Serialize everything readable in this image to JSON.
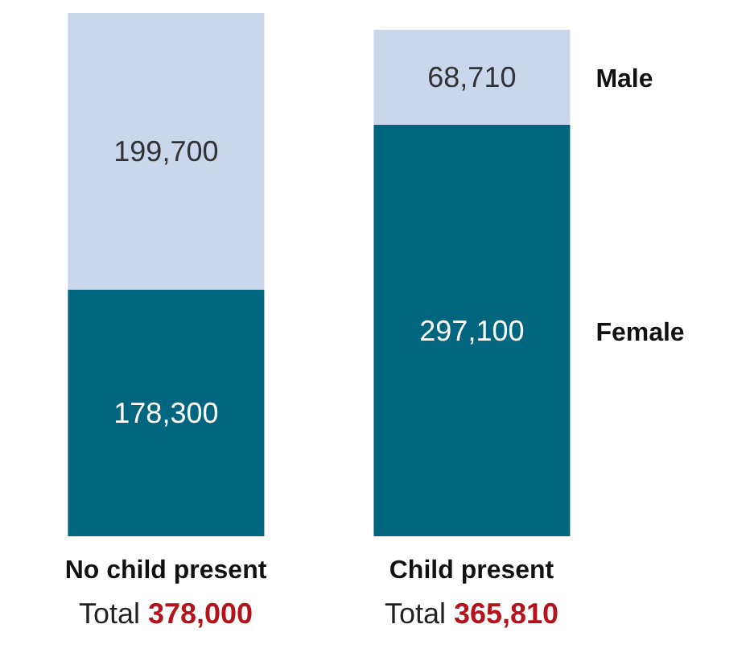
{
  "chart_data": {
    "type": "bar",
    "stacked": true,
    "categories": [
      "No child present",
      "Child present"
    ],
    "series": [
      {
        "name": "Female",
        "color": "#006680",
        "values": [
          178300,
          297100
        ],
        "value_labels": [
          "178,300",
          "297,100"
        ]
      },
      {
        "name": "Male",
        "color": "#c9d6ec",
        "values": [
          199700,
          68710
        ],
        "value_labels": [
          "199,700",
          "68,710"
        ]
      }
    ],
    "totals": [
      "378,000",
      "365,810"
    ],
    "annotations": [
      "Total",
      "Total"
    ],
    "legend": false,
    "grid": false
  }
}
